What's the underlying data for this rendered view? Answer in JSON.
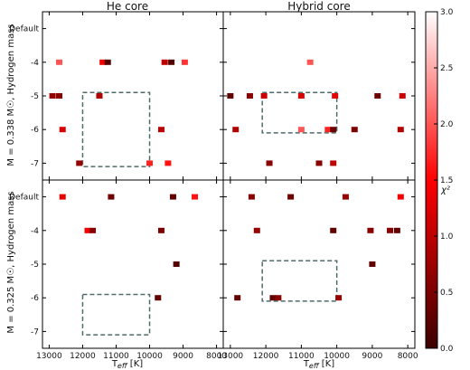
{
  "chart_data": {
    "type": "heatmap",
    "xlabel": "T_eff [K]",
    "colorbar": {
      "label": "χ²",
      "min": 0.0,
      "max": 3.0,
      "ticks": [
        "0.0",
        "0.5",
        "1.0",
        "1.5",
        "2.0",
        "2.5",
        "3.0"
      ],
      "colors": [
        "#3b0000",
        "#ff0000",
        "#ffffff"
      ]
    },
    "x_ticks": [
      "13000",
      "12000",
      "11000",
      "10000",
      "9000",
      "8000"
    ],
    "y_ticks": [
      "Default",
      "-4",
      "-5",
      "-6",
      "-7"
    ],
    "xlim": [
      13200,
      7800
    ],
    "panels": [
      {
        "title": "He core",
        "ylabel": "M = 0.338 M☉, Hydrogen mass",
        "box": {
          "x": [
            12000,
            10000
          ],
          "y": [
            -4.9,
            -7.1
          ]
        },
        "cells": [
          {
            "x": 12700,
            "y": -4.0,
            "chi2": 2.0
          },
          {
            "x": 11400,
            "y": -4.0,
            "chi2": 1.4
          },
          {
            "x": 11250,
            "y": -4.0,
            "chi2": 0.2
          },
          {
            "x": 9550,
            "y": -4.0,
            "chi2": 1.0
          },
          {
            "x": 9350,
            "y": -4.0,
            "chi2": 0.2
          },
          {
            "x": 8950,
            "y": -4.0,
            "chi2": 1.8
          },
          {
            "x": 12900,
            "y": -5.0,
            "chi2": 0.7
          },
          {
            "x": 12700,
            "y": -5.0,
            "chi2": 0.6
          },
          {
            "x": 11500,
            "y": -5.0,
            "chi2": 0.9
          },
          {
            "x": 12600,
            "y": -6.0,
            "chi2": 1.2
          },
          {
            "x": 9650,
            "y": -6.0,
            "chi2": 1.0
          },
          {
            "x": 12100,
            "y": -7.0,
            "chi2": 0.7
          },
          {
            "x": 10000,
            "y": -7.0,
            "chi2": 1.7
          },
          {
            "x": 9450,
            "y": -7.0,
            "chi2": 1.6
          }
        ]
      },
      {
        "title": "Hybrid core",
        "ylabel": "",
        "box": {
          "x": [
            12100,
            10000
          ],
          "y": [
            -4.9,
            -6.1
          ]
        },
        "cells": [
          {
            "x": 10750,
            "y": -4.0,
            "chi2": 2.0
          },
          {
            "x": 13000,
            "y": -5.0,
            "chi2": 0.3
          },
          {
            "x": 12450,
            "y": -5.0,
            "chi2": 0.6
          },
          {
            "x": 12050,
            "y": -5.0,
            "chi2": 1.1
          },
          {
            "x": 11000,
            "y": -5.0,
            "chi2": 1.2
          },
          {
            "x": 10050,
            "y": -5.0,
            "chi2": 1.3
          },
          {
            "x": 8850,
            "y": -5.0,
            "chi2": 0.4
          },
          {
            "x": 8150,
            "y": -5.0,
            "chi2": 1.1
          },
          {
            "x": 12850,
            "y": -6.0,
            "chi2": 0.9
          },
          {
            "x": 11000,
            "y": -6.0,
            "chi2": 2.0
          },
          {
            "x": 10250,
            "y": -6.0,
            "chi2": 1.7
          },
          {
            "x": 10100,
            "y": -6.0,
            "chi2": 0.4
          },
          {
            "x": 9500,
            "y": -6.0,
            "chi2": 0.5
          },
          {
            "x": 8200,
            "y": -6.0,
            "chi2": 0.9
          },
          {
            "x": 11900,
            "y": -7.0,
            "chi2": 0.6
          },
          {
            "x": 10500,
            "y": -7.0,
            "chi2": 0.6
          },
          {
            "x": 10100,
            "y": -7.0,
            "chi2": 1.0
          }
        ]
      },
      {
        "title": "",
        "ylabel": "M = 0.325 M☉, Hydrogen mass",
        "box": {
          "x": [
            12000,
            10000
          ],
          "y": [
            -5.9,
            -7.1
          ]
        },
        "cells": [
          {
            "x": 12600,
            "y": -3.0,
            "chi2": 1.3
          },
          {
            "x": 11150,
            "y": -3.0,
            "chi2": 0.4
          },
          {
            "x": 9300,
            "y": -3.0,
            "chi2": 0.3
          },
          {
            "x": 8650,
            "y": -3.0,
            "chi2": 1.6
          },
          {
            "x": 11850,
            "y": -4.0,
            "chi2": 1.4
          },
          {
            "x": 11700,
            "y": -4.0,
            "chi2": 0.6
          },
          {
            "x": 9650,
            "y": -4.0,
            "chi2": 0.5
          },
          {
            "x": 9200,
            "y": -5.0,
            "chi2": 0.2
          },
          {
            "x": 9750,
            "y": -6.0,
            "chi2": 0.3
          }
        ]
      },
      {
        "title": "",
        "ylabel": "",
        "box": {
          "x": [
            12100,
            10000
          ],
          "y": [
            -4.9,
            -6.1
          ]
        },
        "cells": [
          {
            "x": 12400,
            "y": -3.0,
            "chi2": 0.6
          },
          {
            "x": 11300,
            "y": -3.0,
            "chi2": 0.4
          },
          {
            "x": 9750,
            "y": -3.0,
            "chi2": 0.7
          },
          {
            "x": 8200,
            "y": -3.0,
            "chi2": 1.4
          },
          {
            "x": 12250,
            "y": -4.0,
            "chi2": 0.7
          },
          {
            "x": 10100,
            "y": -4.0,
            "chi2": 0.3
          },
          {
            "x": 9050,
            "y": -4.0,
            "chi2": 0.6
          },
          {
            "x": 8500,
            "y": -4.0,
            "chi2": 0.6
          },
          {
            "x": 8300,
            "y": -4.0,
            "chi2": 0.3
          },
          {
            "x": 9000,
            "y": -5.0,
            "chi2": 0.3
          },
          {
            "x": 12800,
            "y": -6.0,
            "chi2": 0.3
          },
          {
            "x": 11800,
            "y": -6.0,
            "chi2": 0.3
          },
          {
            "x": 11650,
            "y": -6.0,
            "chi2": 0.6
          },
          {
            "x": 9950,
            "y": -6.0,
            "chi2": 0.7
          }
        ]
      }
    ]
  }
}
